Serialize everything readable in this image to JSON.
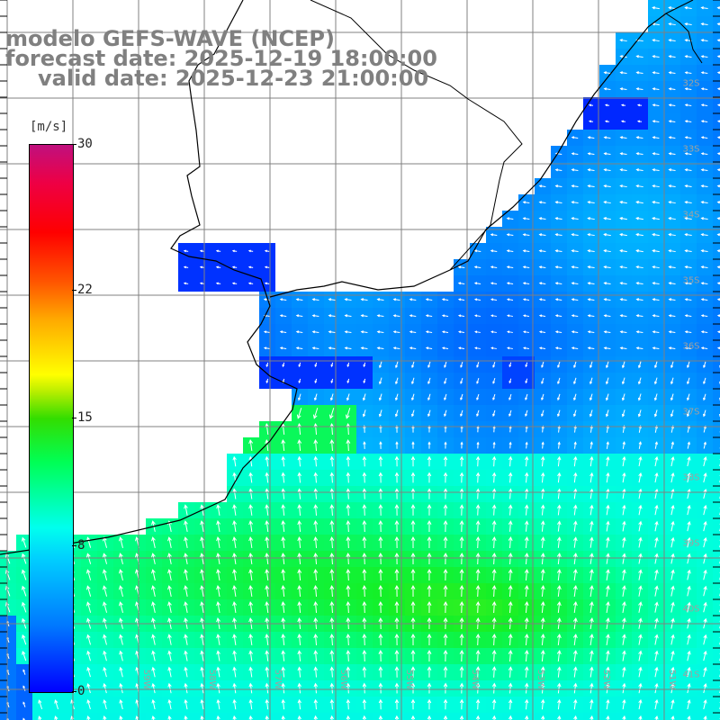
{
  "title": {
    "model": "modelo GEFS-WAVE (NCEP)",
    "forecast": "forecast date: 2025-12-19 18:00:00",
    "valid": "valid date: 2025-12-23 21:00:00"
  },
  "colorbar": {
    "unit": "[m/s]",
    "min": 0,
    "max": 30,
    "ticks": [
      "30",
      "22",
      "15",
      "8",
      "0"
    ],
    "tick_values": [
      30,
      22,
      15,
      8,
      0
    ]
  },
  "map": {
    "lat_labels": [
      "32S",
      "33S",
      "34S",
      "35S",
      "36S",
      "37S",
      "38S",
      "39S",
      "40S",
      "41S"
    ],
    "lon_labels": [
      "59W",
      "58W",
      "57W",
      "56W",
      "55W",
      "54W",
      "53W",
      "52W",
      "51W"
    ],
    "colors": {
      "land": "#ffffff",
      "coast": "#000000",
      "grid": "#808080",
      "arrow": "#ffffff"
    }
  }
}
